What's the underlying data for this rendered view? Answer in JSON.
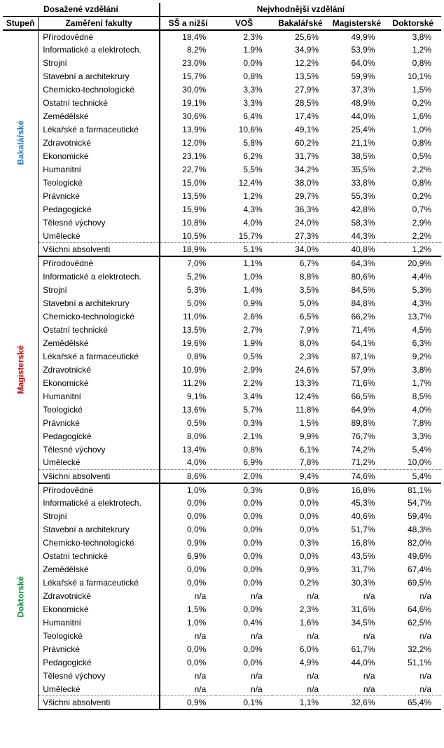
{
  "headers": {
    "top_left": "Dosažené vzdělání",
    "top_right": "Nejvhodnější vzdělání",
    "stupen": "Stupeň",
    "zamereni": "Zaměření fakulty",
    "cols": [
      "SŠ a nižší",
      "VOŠ",
      "Bakalářské",
      "Magisterské",
      "Doktorské"
    ]
  },
  "colors": {
    "bakalarske": "#1f77d4",
    "magisterske": "#cc0000",
    "doktorske": "#009933"
  },
  "sections": [
    {
      "label": "Bakalářské",
      "color_key": "bakalarske",
      "rows": [
        {
          "f": "Přírodovědné",
          "v": [
            "18,4%",
            "2,3%",
            "25,6%",
            "49,9%",
            "3,8%"
          ]
        },
        {
          "f": "Informatické a elektrotech.",
          "v": [
            "8,2%",
            "1,9%",
            "34,9%",
            "53,9%",
            "1,2%"
          ]
        },
        {
          "f": "Strojní",
          "v": [
            "23,0%",
            "0,0%",
            "12,2%",
            "64,0%",
            "0,8%"
          ]
        },
        {
          "f": "Stavební a architekrury",
          "v": [
            "15,7%",
            "0,8%",
            "13,5%",
            "59,9%",
            "10,1%"
          ]
        },
        {
          "f": "Chemicko-technologické",
          "v": [
            "30,0%",
            "3,3%",
            "27,9%",
            "37,3%",
            "1,5%"
          ]
        },
        {
          "f": "Ostatní technické",
          "v": [
            "19,1%",
            "3,3%",
            "28,5%",
            "48,9%",
            "0,2%"
          ]
        },
        {
          "f": "Zemědělské",
          "v": [
            "30,6%",
            "6,4%",
            "17,4%",
            "44,0%",
            "1,6%"
          ]
        },
        {
          "f": "Lékařské a farmaceutické",
          "v": [
            "13,9%",
            "10,6%",
            "49,1%",
            "25,4%",
            "1,0%"
          ]
        },
        {
          "f": "Zdravotnické",
          "v": [
            "12,0%",
            "5,8%",
            "60,2%",
            "21,1%",
            "0,8%"
          ]
        },
        {
          "f": "Ekonomické",
          "v": [
            "23,1%",
            "6,2%",
            "31,7%",
            "38,5%",
            "0,5%"
          ]
        },
        {
          "f": "Humanitní",
          "v": [
            "22,7%",
            "5,5%",
            "34,2%",
            "35,5%",
            "2,2%"
          ]
        },
        {
          "f": "Teologické",
          "v": [
            "15,0%",
            "12,4%",
            "38,0%",
            "33,8%",
            "0,8%"
          ]
        },
        {
          "f": "Právnické",
          "v": [
            "13,5%",
            "1,2%",
            "29,7%",
            "55,3%",
            "0,2%"
          ]
        },
        {
          "f": "Pedagogické",
          "v": [
            "15,9%",
            "4,3%",
            "36,3%",
            "42,8%",
            "0,7%"
          ]
        },
        {
          "f": "Tělesné výchovy",
          "v": [
            "10,8%",
            "4,0%",
            "24,0%",
            "58,3%",
            "2,9%"
          ]
        },
        {
          "f": "Umělecké",
          "v": [
            "10,5%",
            "15,7%",
            "27,3%",
            "44,3%",
            "2,2%"
          ]
        }
      ],
      "summary": {
        "f": "Všichni absolventi",
        "v": [
          "18,9%",
          "5,1%",
          "34,0%",
          "40,8%",
          "1,2%"
        ]
      }
    },
    {
      "label": "Magisterské",
      "color_key": "magisterske",
      "rows": [
        {
          "f": "Přírodovědné",
          "v": [
            "7,0%",
            "1,1%",
            "6,7%",
            "64,3%",
            "20,9%"
          ]
        },
        {
          "f": "Informatické a elektrotech.",
          "v": [
            "5,2%",
            "1,0%",
            "8,8%",
            "80,6%",
            "4,4%"
          ]
        },
        {
          "f": "Strojní",
          "v": [
            "5,3%",
            "1,4%",
            "3,5%",
            "84,5%",
            "5,3%"
          ]
        },
        {
          "f": "Stavební a architekrury",
          "v": [
            "5,0%",
            "0,9%",
            "5,0%",
            "84,8%",
            "4,3%"
          ]
        },
        {
          "f": "Chemicko-technologické",
          "v": [
            "11,0%",
            "2,6%",
            "6,5%",
            "66,2%",
            "13,7%"
          ]
        },
        {
          "f": "Ostatní technické",
          "v": [
            "13,5%",
            "2,7%",
            "7,9%",
            "71,4%",
            "4,5%"
          ]
        },
        {
          "f": "Zemědělské",
          "v": [
            "19,6%",
            "1,9%",
            "8,0%",
            "64,1%",
            "6,3%"
          ]
        },
        {
          "f": "Lékařské a farmaceutické",
          "v": [
            "0,8%",
            "0,5%",
            "2,3%",
            "87,1%",
            "9,2%"
          ]
        },
        {
          "f": "Zdravotnické",
          "v": [
            "10,9%",
            "2,9%",
            "24,6%",
            "57,9%",
            "3,8%"
          ]
        },
        {
          "f": "Ekonomické",
          "v": [
            "11,2%",
            "2,2%",
            "13,3%",
            "71,6%",
            "1,7%"
          ]
        },
        {
          "f": "Humanitní",
          "v": [
            "9,1%",
            "3,4%",
            "12,4%",
            "66,5%",
            "8,5%"
          ]
        },
        {
          "f": "Teologické",
          "v": [
            "13,6%",
            "5,7%",
            "11,8%",
            "64,9%",
            "4,0%"
          ]
        },
        {
          "f": "Právnické",
          "v": [
            "0,5%",
            "0,3%",
            "1,5%",
            "89,8%",
            "7,8%"
          ]
        },
        {
          "f": "Pedagogické",
          "v": [
            "8,0%",
            "2,1%",
            "9,9%",
            "76,7%",
            "3,3%"
          ]
        },
        {
          "f": "Tělesné výchovy",
          "v": [
            "13,4%",
            "0,8%",
            "6,1%",
            "74,2%",
            "5,4%"
          ]
        },
        {
          "f": "Umělecké",
          "v": [
            "4,0%",
            "6,9%",
            "7,8%",
            "71,2%",
            "10,0%"
          ]
        }
      ],
      "summary": {
        "f": "Všichni absolventi",
        "v": [
          "8,6%",
          "2,0%",
          "9,4%",
          "74,6%",
          "5,4%"
        ]
      }
    },
    {
      "label": "Doktorské",
      "color_key": "doktorske",
      "rows": [
        {
          "f": "Přírodovědné",
          "v": [
            "1,0%",
            "0,3%",
            "0,8%",
            "16,8%",
            "81,1%"
          ]
        },
        {
          "f": "Informatické a elektrotech.",
          "v": [
            "0,0%",
            "0,0%",
            "0,0%",
            "45,3%",
            "54,7%"
          ]
        },
        {
          "f": "Strojní",
          "v": [
            "0,0%",
            "0,0%",
            "0,0%",
            "40,6%",
            "59,4%"
          ]
        },
        {
          "f": "Stavební a architekrury",
          "v": [
            "0,0%",
            "0,0%",
            "0,0%",
            "51,7%",
            "48,3%"
          ]
        },
        {
          "f": "Chemicko-technologické",
          "v": [
            "0,9%",
            "0,0%",
            "0,3%",
            "16,8%",
            "82,0%"
          ]
        },
        {
          "f": "Ostatní technické",
          "v": [
            "6,9%",
            "0,0%",
            "0,0%",
            "43,5%",
            "49,6%"
          ]
        },
        {
          "f": "Zemědělské",
          "v": [
            "0,0%",
            "0,0%",
            "0,9%",
            "31,7%",
            "67,4%"
          ]
        },
        {
          "f": "Lékařské a farmaceutické",
          "v": [
            "0,0%",
            "0,0%",
            "0,2%",
            "30,3%",
            "69,5%"
          ]
        },
        {
          "f": "Zdravotnické",
          "v": [
            "n/a",
            "n/a",
            "n/a",
            "n/a",
            "n/a"
          ]
        },
        {
          "f": "Ekonomické",
          "v": [
            "1,5%",
            "0,0%",
            "2,3%",
            "31,6%",
            "64,6%"
          ]
        },
        {
          "f": "Humanitní",
          "v": [
            "1,0%",
            "0,4%",
            "1,6%",
            "34,5%",
            "62,5%"
          ]
        },
        {
          "f": "Teologické",
          "v": [
            "n/a",
            "n/a",
            "n/a",
            "n/a",
            "n/a"
          ]
        },
        {
          "f": "Právnické",
          "v": [
            "0,0%",
            "0,0%",
            "6,0%",
            "61,7%",
            "32,2%"
          ]
        },
        {
          "f": "Pedagogické",
          "v": [
            "0,0%",
            "0,0%",
            "4,9%",
            "44,0%",
            "51,1%"
          ]
        },
        {
          "f": "Tělesné výchovy",
          "v": [
            "n/a",
            "n/a",
            "n/a",
            "n/a",
            "n/a"
          ]
        },
        {
          "f": "Umělecké",
          "v": [
            "n/a",
            "n/a",
            "n/a",
            "n/a",
            "n/a"
          ]
        }
      ],
      "summary": {
        "f": "Všichni absolventi",
        "v": [
          "0,9%",
          "0,1%",
          "1,1%",
          "32,6%",
          "65,4%"
        ]
      }
    }
  ]
}
